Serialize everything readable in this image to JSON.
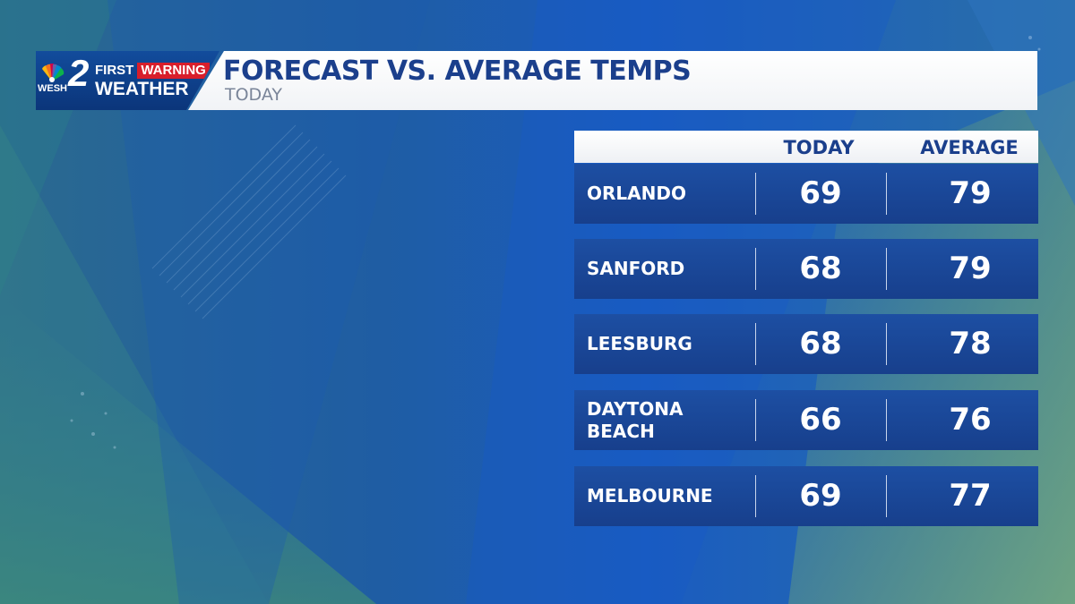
{
  "header": {
    "logo": {
      "station": "WESH",
      "channel": "2",
      "first": "FIRST",
      "warning": "WARNING",
      "weather": "WEATHER"
    },
    "title": "FORECAST VS. AVERAGE TEMPS",
    "subtitle": "TODAY"
  },
  "table": {
    "columns": {
      "today": "TODAY",
      "average": "AVERAGE"
    },
    "rows": [
      {
        "city": "ORLANDO",
        "today": "69",
        "average": "79"
      },
      {
        "city": "SANFORD",
        "today": "68",
        "average": "79"
      },
      {
        "city": "LEESBURG",
        "today": "68",
        "average": "78"
      },
      {
        "city": "DAYTONA\nBEACH",
        "today": "66",
        "average": "76"
      },
      {
        "city": "MELBOURNE",
        "today": "69",
        "average": "77"
      }
    ]
  },
  "colors": {
    "brand_blue": "#1b3f8c",
    "row_blue": "#1d4fa3",
    "warning_red": "#d81e2b",
    "nbc_peacock": [
      "#fcb711",
      "#f37021",
      "#cc004c",
      "#6460aa",
      "#0089d0",
      "#0db14b"
    ]
  },
  "icons": {
    "logo_mark": "nbc-peacock-icon",
    "warning_chevron": "chevron-right-icon"
  }
}
